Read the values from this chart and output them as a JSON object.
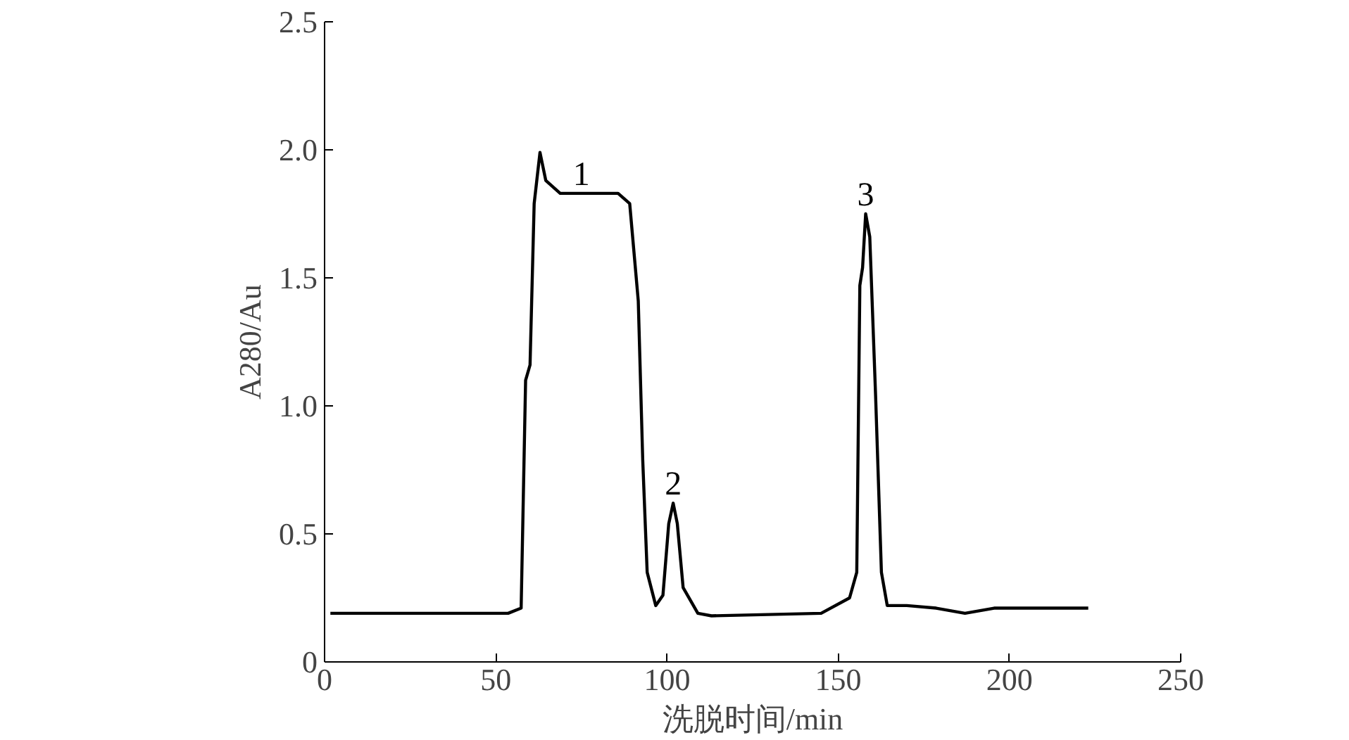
{
  "chart_data": {
    "type": "line",
    "xlabel": "洗脱时间/min",
    "ylabel": "A280/Au",
    "x": [
      1.7,
      39,
      53.6,
      57.4,
      58.7,
      60,
      61.2,
      62.9,
      64.6,
      68.8,
      85.7,
      89.1,
      91.6,
      92.9,
      94.2,
      96.7,
      98.8,
      100.5,
      101.8,
      103,
      104.7,
      109,
      113,
      145,
      153.3,
      155.4,
      156.3,
      157.1,
      158,
      159.2,
      160.9,
      162.6,
      164.3,
      170,
      178.6,
      187,
      195.5,
      223
    ],
    "series": [
      {
        "color": "#000000",
        "values": [
          0.19,
          0.19,
          0.19,
          0.21,
          1.1,
          1.16,
          1.79,
          1.99,
          1.88,
          1.83,
          1.83,
          1.79,
          1.41,
          0.79,
          0.35,
          0.22,
          0.26,
          0.54,
          0.62,
          0.54,
          0.29,
          0.19,
          0.18,
          0.19,
          0.25,
          0.35,
          1.47,
          1.54,
          1.75,
          1.66,
          1.04,
          0.35,
          0.22,
          0.22,
          0.21,
          0.19,
          0.21,
          0.21
        ]
      }
    ],
    "xlim": [
      0,
      250
    ],
    "xticks": [
      0,
      50,
      100,
      150,
      200,
      250
    ],
    "ylim": [
      0,
      2.5
    ],
    "yticks": [
      0,
      {
        "value": 0.5,
        "label": "0.5"
      },
      {
        "value": 1,
        "label": "1.0"
      },
      {
        "value": 1.5,
        "label": "1.5"
      },
      {
        "value": 2,
        "label": "2.0"
      },
      {
        "value": 2.5,
        "label": "2.5"
      }
    ],
    "annotations": [
      {
        "text": "1",
        "x": 75,
        "y": 1.83
      },
      {
        "text": "2",
        "x": 101.8,
        "y": 0.62
      },
      {
        "text": "3",
        "x": 158,
        "y": 1.75
      }
    ],
    "grid": false,
    "marker": "none",
    "line_style": "solid"
  }
}
